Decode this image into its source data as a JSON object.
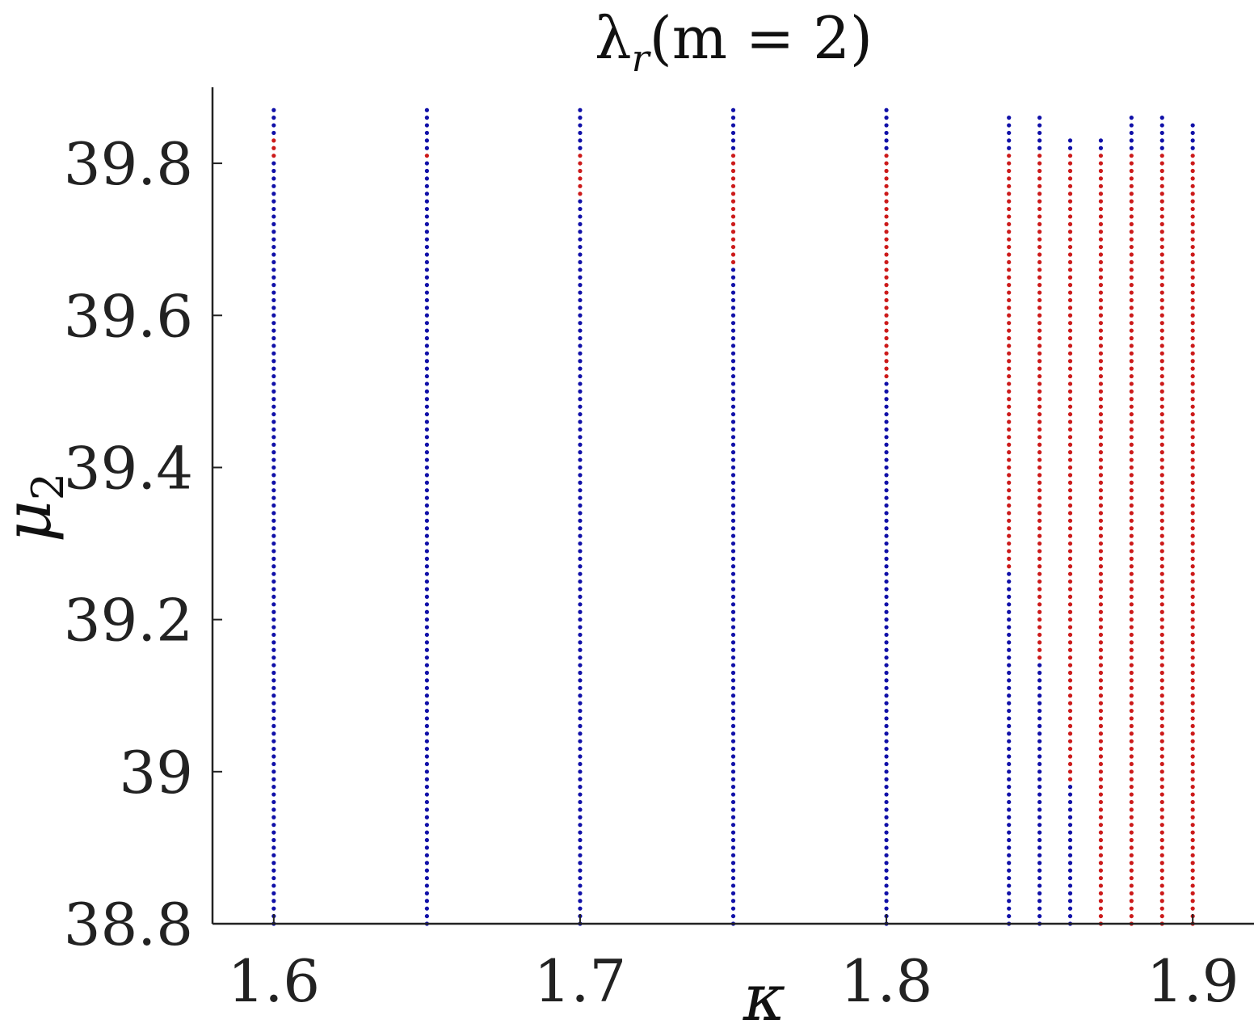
{
  "chart_data": {
    "type": "scatter",
    "title": "λ_r(m = 2)",
    "title_parts": {
      "lambda": "λ",
      "sub": "r",
      "args": "(m = 2)"
    },
    "xlabel": "κ",
    "ylabel": {
      "base": "μ",
      "sub": "2"
    },
    "xlim": [
      1.58,
      1.92
    ],
    "ylim": [
      38.8,
      39.9
    ],
    "xticks": [
      1.6,
      1.7,
      1.8,
      1.9
    ],
    "xtick_labels": [
      "1.6",
      "1.7",
      "1.8",
      "1.9"
    ],
    "yticks": [
      38.8,
      39.0,
      39.2,
      39.4,
      39.6,
      39.8
    ],
    "ytick_labels": [
      "38.8",
      "39",
      "39.2",
      "39.4",
      "39.6",
      "39.8"
    ],
    "grid": false,
    "legend": "none",
    "colors": {
      "stable": "#1010a8",
      "unstable": "#cc1a1a",
      "axis": "#222222"
    },
    "mu_step": 0.01,
    "series": [
      {
        "kappa": 1.6,
        "mu_min": 38.8,
        "mu_max": 39.87,
        "red_ranges": [
          [
            39.81,
            39.83
          ]
        ]
      },
      {
        "kappa": 1.65,
        "mu_min": 38.8,
        "mu_max": 39.87,
        "red_ranges": [
          [
            39.81,
            39.81
          ]
        ]
      },
      {
        "kappa": 1.7,
        "mu_min": 38.8,
        "mu_max": 39.87,
        "red_ranges": [
          [
            39.76,
            39.81
          ]
        ]
      },
      {
        "kappa": 1.75,
        "mu_min": 38.8,
        "mu_max": 39.87,
        "red_ranges": [
          [
            39.67,
            39.81
          ]
        ]
      },
      {
        "kappa": 1.8,
        "mu_min": 38.8,
        "mu_max": 39.87,
        "red_ranges": [
          [
            39.52,
            39.81
          ]
        ]
      },
      {
        "kappa": 1.84,
        "mu_min": 38.8,
        "mu_max": 39.86,
        "red_ranges": [
          [
            39.27,
            39.81
          ]
        ]
      },
      {
        "kappa": 1.85,
        "mu_min": 38.8,
        "mu_max": 39.86,
        "red_ranges": [
          [
            39.15,
            39.81
          ]
        ]
      },
      {
        "kappa": 1.86,
        "mu_min": 38.8,
        "mu_max": 39.83,
        "red_ranges": [
          [
            38.99,
            39.81
          ]
        ]
      },
      {
        "kappa": 1.87,
        "mu_min": 38.8,
        "mu_max": 39.83,
        "red_ranges": [
          [
            38.8,
            39.81
          ]
        ]
      },
      {
        "kappa": 1.88,
        "mu_min": 38.8,
        "mu_max": 39.86,
        "red_ranges": [
          [
            38.8,
            39.81
          ]
        ]
      },
      {
        "kappa": 1.89,
        "mu_min": 38.8,
        "mu_max": 39.86,
        "red_ranges": [
          [
            38.8,
            39.81
          ]
        ]
      },
      {
        "kappa": 1.9,
        "mu_min": 38.8,
        "mu_max": 39.85,
        "red_ranges": [
          [
            38.8,
            39.81
          ]
        ]
      }
    ]
  }
}
